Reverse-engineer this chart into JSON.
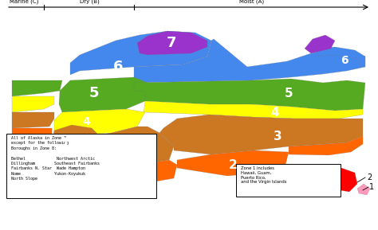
{
  "marine_label": "Marine (C)",
  "dry_label": "Dry (B)",
  "moist_label": "Moist (A)",
  "zone_colors": {
    "1": "#FF0000",
    "2": "#FF6600",
    "3": "#CC7722",
    "4": "#FFFF00",
    "5": "#55AA22",
    "6": "#4488EE",
    "7": "#9933CC",
    "8": "#AAAAAA"
  },
  "alaska_note": "All of Alaska in Zone 7\nexcept for the following\nBoroughs in Zone 8:\n\nBethel             Northwest Arctic\nDillingham        Southeast Fairbanks\nFairbanks N. Star  Wade Hampton\nNome              Yukon-Koyukuk\nNorth Slope",
  "zone1_note": "Zone 1 includes\nHawaii, Guam,\nPuerto Rico,\nand the Virgin Islands",
  "bg_color": "#FFFFFF"
}
